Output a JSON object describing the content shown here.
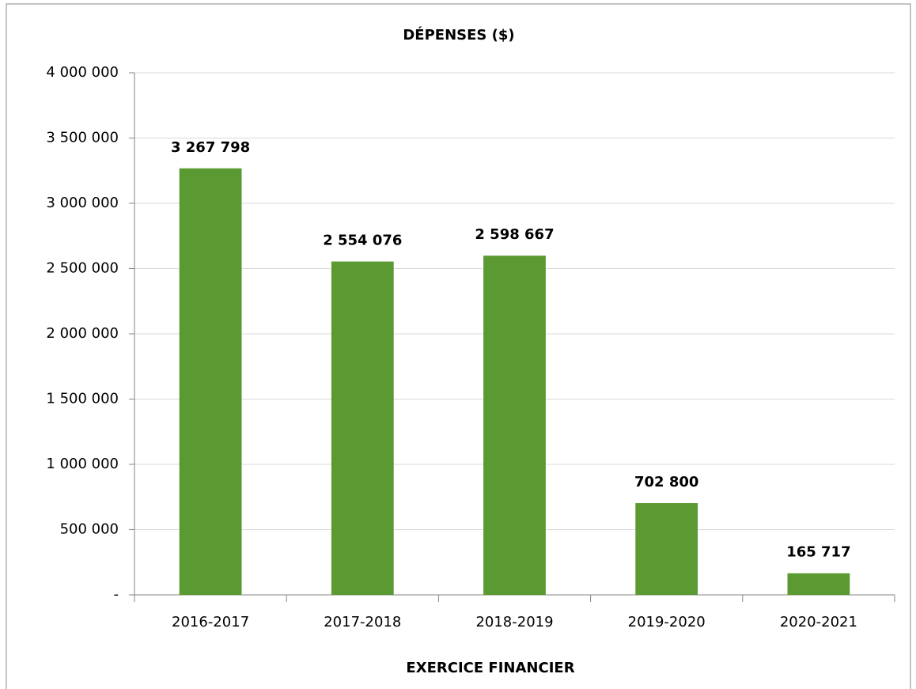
{
  "chart_data": {
    "type": "bar",
    "title": "DÉPENSES ($)",
    "x_label": "EXERCICE FINANCIER",
    "categories": [
      "2016-2017",
      "2017-2018",
      "2018-2019",
      "2019-2020",
      "2020-2021"
    ],
    "values": [
      3267798,
      2554076,
      2598667,
      702800,
      165717
    ],
    "value_labels": [
      "3 267 798",
      "2 554 076",
      "2 598 667",
      "702 800",
      "165 717"
    ],
    "color": "#5b9a33",
    "ylim": [
      0,
      4000000
    ],
    "yticks": [
      {
        "value": 0,
        "label": "-"
      },
      {
        "value": 500000,
        "label": "500 000"
      },
      {
        "value": 1000000,
        "label": "1 000 000"
      },
      {
        "value": 1500000,
        "label": "1 500 000"
      },
      {
        "value": 2000000,
        "label": "2 000 000"
      },
      {
        "value": 2500000,
        "label": "2 500 000"
      },
      {
        "value": 3000000,
        "label": "3 000 000"
      },
      {
        "value": 3500000,
        "label": "3 500 000"
      },
      {
        "value": 4000000,
        "label": "4 000 000"
      }
    ],
    "grid": true
  }
}
